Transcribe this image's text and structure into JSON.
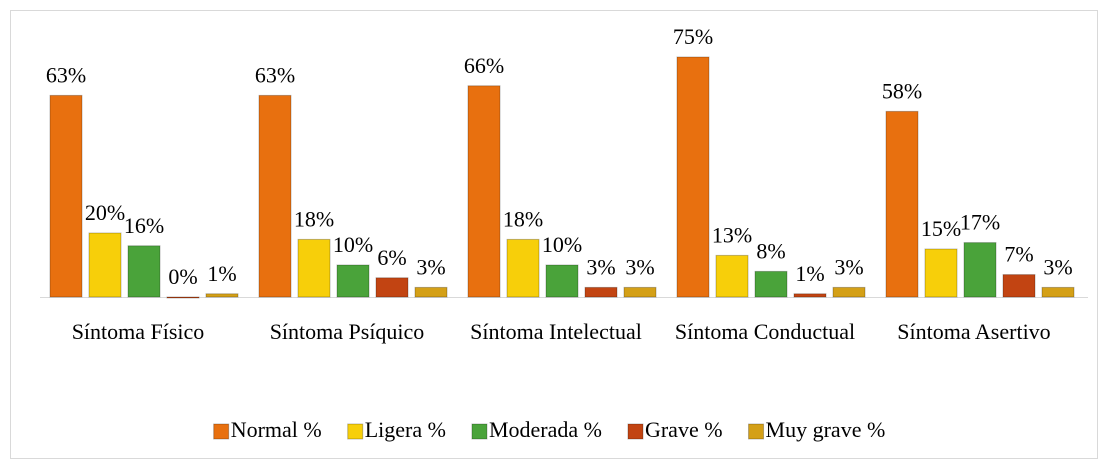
{
  "chart_data": {
    "type": "bar",
    "categories": [
      "Síntoma Físico",
      "Síntoma Psíquico",
      "Síntoma Intelectual",
      "Síntoma Conductual",
      "Síntoma Asertivo"
    ],
    "series": [
      {
        "name": "Normal %",
        "color": "#e8700f",
        "values": [
          63,
          63,
          66,
          75,
          58
        ],
        "value_labels": [
          "63%",
          "63%",
          "66%",
          "75%",
          "58%"
        ]
      },
      {
        "name": "Ligera %",
        "color": "#f7cf0a",
        "values": [
          20,
          18,
          18,
          13,
          15
        ],
        "value_labels": [
          "20%",
          "18%",
          "18%",
          "13%",
          "15%"
        ]
      },
      {
        "name": "Moderada %",
        "color": "#4aa33a",
        "values": [
          16,
          10,
          10,
          8,
          17
        ],
        "value_labels": [
          "16%",
          "10%",
          "10%",
          "8%",
          "17%"
        ]
      },
      {
        "name": "Grave %",
        "color": "#c24412",
        "values": [
          0,
          6,
          3,
          1,
          7
        ],
        "value_labels": [
          "0%",
          "6%",
          "3%",
          "1%",
          "7%"
        ]
      },
      {
        "name": "Muy grave %",
        "color": "#d4a017",
        "values": [
          1,
          3,
          3,
          3,
          3
        ],
        "value_labels": [
          "1%",
          "3%",
          "3%",
          "3%",
          "3%"
        ]
      }
    ]
  }
}
